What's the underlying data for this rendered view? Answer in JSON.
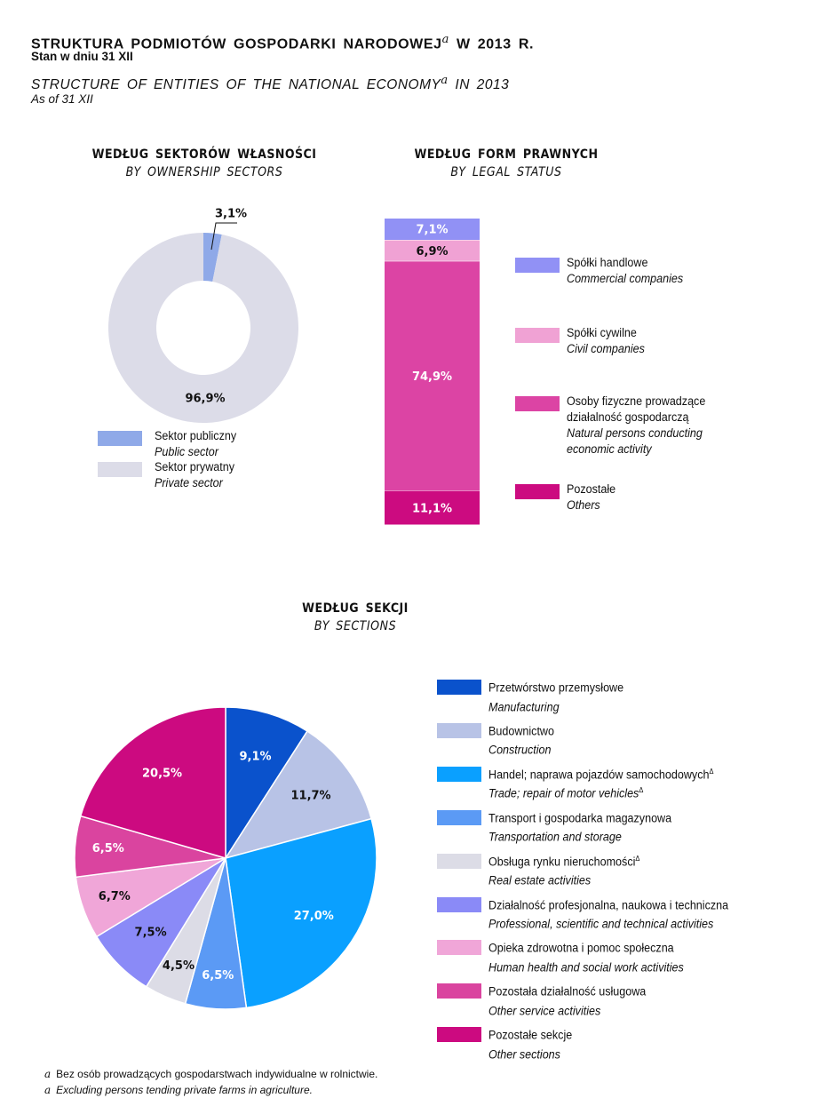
{
  "header": {
    "title_pl": "STRUKTURA PODMIOTÓW GOSPODARKI NARODOWEJ",
    "title_pl_end": "W 2013 R.",
    "subtitle_pl": "Stan w dniu 31 XII",
    "title_en": "STRUCTURE OF ENTITIES OF THE NATIONAL ECONOMY",
    "title_en_end": "IN 2013",
    "subtitle_en": "As of 31 XII",
    "footnote_mark": "a"
  },
  "sections": {
    "ownership": {
      "title_pl": "WEDŁUG SEKTORÓW WŁASNOŚCI",
      "title_en": "BY OWNERSHIP SECTORS"
    },
    "legal": {
      "title_pl": "WEDŁUG FORM PRAWNYCH",
      "title_en": "BY LEGAL STATUS"
    },
    "sections": {
      "title_pl": "WEDŁUG SEKCJI",
      "title_en": "BY SECTIONS"
    }
  },
  "footnote": {
    "mark": "a",
    "pl": "Bez osób prowadzących gospodarstwach indywidualne w rolnictwie.",
    "en": "Excluding persons tending private farms in agriculture."
  },
  "chart_data": [
    {
      "type": "pie",
      "subtype": "donut",
      "title": "WEDŁUG SEKTORÓW WŁASNOŚCI",
      "subtitle": "BY OWNERSHIP SECTORS",
      "categories": [
        "Sektor publiczny",
        "Sektor prywatny"
      ],
      "categories_en": [
        "Public sector",
        "Private sector"
      ],
      "values": [
        3.1,
        96.9
      ],
      "labels": [
        "3,1%",
        "96,9%"
      ],
      "colors": [
        "#8fa9e8",
        "#dcdce8"
      ]
    },
    {
      "type": "bar",
      "subtype": "stacked-100",
      "title": "WEDŁUG FORM PRAWNYCH",
      "subtitle": "BY LEGAL STATUS",
      "categories": [
        "Spółki handlowe",
        "Spółki cywilne",
        "Osoby fizyczne prowadzące działalność gospodarczą",
        "Pozostałe"
      ],
      "legend_pl": [
        [
          "Spółki handlowe"
        ],
        [
          "Spółki cywilne"
        ],
        [
          "Osoby fizyczne prowadzące",
          "działalność gospodarczą"
        ],
        [
          "Pozostałe"
        ]
      ],
      "legend_en": [
        [
          "Commercial companies"
        ],
        [
          "Civil companies"
        ],
        [
          "Natural persons conducting",
          "economic activity"
        ],
        [
          "Others"
        ]
      ],
      "values": [
        7.1,
        6.9,
        74.9,
        11.1
      ],
      "labels": [
        "7,1%",
        "6,9%",
        "74,9%",
        "11,1%"
      ],
      "colors": [
        "#9191f5",
        "#f0a2d4",
        "#dc44a4",
        "#cc0b80"
      ],
      "label_colors": [
        "#ffffff",
        "#111111",
        "#ffffff",
        "#ffffff"
      ]
    },
    {
      "type": "pie",
      "title": "WEDŁUG SEKCJI",
      "subtitle": "BY SECTIONS",
      "categories": [
        "Przetwórstwo przemysłowe",
        "Budownictwo",
        "Handel; naprawa pojazdów samochodowych",
        "Transport i gospodarka magazynowa",
        "Obsługa rynku nieruchomości",
        "Działalność profesjonalna, naukowa i techniczna",
        "Opieka zdrowotna i pomoc społeczna",
        "Pozostała działalność usługowa",
        "Pozostałe sekcje"
      ],
      "categories_en": [
        "Manufacturing",
        "Construction",
        "Trade; repair of motor vehicles",
        "Transportation and storage",
        "Real estate activities",
        "Professional, scientific and technical activities",
        "Human health and social work activities",
        "Other service activities",
        "Other sections"
      ],
      "delta_mark": "Δ",
      "values": [
        9.1,
        11.7,
        27.0,
        6.5,
        4.5,
        7.5,
        6.7,
        6.5,
        20.5
      ],
      "labels": [
        "9,1%",
        "11,7%",
        "27,0%",
        "6,5%",
        "4,5%",
        "7,5%",
        "6,7%",
        "6,5%",
        "20,5%"
      ],
      "colors": [
        "#0a52cc",
        "#b8c3e6",
        "#0aa0ff",
        "#5b9af5",
        "#dcdce6",
        "#8a8af7",
        "#f0a6d8",
        "#da449f",
        "#cc0a80"
      ],
      "label_colors": [
        "#ffffff",
        "#111111",
        "#ffffff",
        "#ffffff",
        "#111111",
        "#111111",
        "#111111",
        "#ffffff",
        "#ffffff"
      ]
    }
  ]
}
